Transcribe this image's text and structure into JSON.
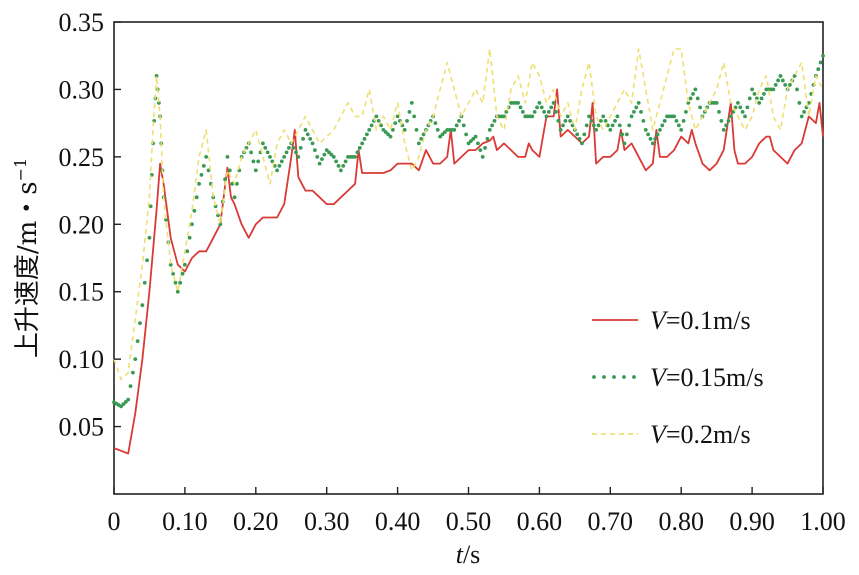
{
  "chart_data": {
    "type": "line",
    "xlabel_var": "t",
    "xlabel_unit": "/s",
    "ylabel_main": "上升速度/m・s",
    "ylabel_sup": "−1",
    "xlim": [
      0,
      1.0
    ],
    "ylim": [
      0,
      0.35
    ],
    "grid": false,
    "legend_position": "center-right",
    "x_ticks": [
      0,
      0.1,
      0.2,
      0.3,
      0.4,
      0.5,
      0.6,
      0.7,
      0.8,
      0.9,
      1.0
    ],
    "x_tick_labels": [
      "0",
      "0.10",
      "0.20",
      "0.30",
      "0.40",
      "0.50",
      "0.60",
      "0.70",
      "0.80",
      "0.90",
      "1.00"
    ],
    "y_ticks": [
      0.05,
      0.1,
      0.15,
      0.2,
      0.25,
      0.3,
      0.35
    ],
    "y_tick_labels": [
      "0.05",
      "0.10",
      "0.15",
      "0.20",
      "0.25",
      "0.30",
      "0.35"
    ],
    "series": [
      {
        "name_var": "V",
        "name_rest": "=0.1m/s",
        "color": "#d93a36",
        "style": "solid",
        "x": [
          0,
          0.01,
          0.02,
          0.03,
          0.04,
          0.05,
          0.06,
          0.065,
          0.07,
          0.08,
          0.09,
          0.1,
          0.11,
          0.12,
          0.13,
          0.14,
          0.15,
          0.16,
          0.165,
          0.17,
          0.18,
          0.19,
          0.2,
          0.21,
          0.22,
          0.23,
          0.24,
          0.25,
          0.255,
          0.26,
          0.27,
          0.28,
          0.29,
          0.3,
          0.31,
          0.32,
          0.33,
          0.34,
          0.345,
          0.35,
          0.36,
          0.37,
          0.38,
          0.39,
          0.4,
          0.41,
          0.42,
          0.43,
          0.44,
          0.45,
          0.46,
          0.47,
          0.475,
          0.48,
          0.49,
          0.5,
          0.51,
          0.52,
          0.53,
          0.535,
          0.54,
          0.55,
          0.56,
          0.57,
          0.58,
          0.585,
          0.59,
          0.6,
          0.61,
          0.62,
          0.625,
          0.63,
          0.64,
          0.65,
          0.66,
          0.67,
          0.675,
          0.68,
          0.69,
          0.7,
          0.71,
          0.715,
          0.72,
          0.73,
          0.74,
          0.75,
          0.76,
          0.765,
          0.77,
          0.78,
          0.79,
          0.8,
          0.81,
          0.815,
          0.82,
          0.83,
          0.84,
          0.85,
          0.86,
          0.87,
          0.875,
          0.88,
          0.89,
          0.9,
          0.91,
          0.92,
          0.925,
          0.93,
          0.94,
          0.95,
          0.96,
          0.97,
          0.98,
          0.99,
          0.995,
          1.0
        ],
        "y": [
          0.034,
          0.032,
          0.03,
          0.06,
          0.1,
          0.15,
          0.21,
          0.245,
          0.23,
          0.19,
          0.17,
          0.165,
          0.175,
          0.18,
          0.18,
          0.19,
          0.2,
          0.242,
          0.22,
          0.215,
          0.2,
          0.19,
          0.2,
          0.205,
          0.205,
          0.205,
          0.215,
          0.25,
          0.27,
          0.235,
          0.225,
          0.225,
          0.22,
          0.215,
          0.215,
          0.22,
          0.225,
          0.23,
          0.255,
          0.238,
          0.238,
          0.238,
          0.238,
          0.24,
          0.245,
          0.245,
          0.245,
          0.24,
          0.255,
          0.245,
          0.245,
          0.25,
          0.27,
          0.245,
          0.25,
          0.255,
          0.255,
          0.26,
          0.262,
          0.265,
          0.255,
          0.26,
          0.255,
          0.25,
          0.25,
          0.26,
          0.255,
          0.25,
          0.28,
          0.28,
          0.3,
          0.265,
          0.27,
          0.265,
          0.26,
          0.265,
          0.29,
          0.245,
          0.25,
          0.25,
          0.255,
          0.27,
          0.255,
          0.26,
          0.25,
          0.24,
          0.245,
          0.27,
          0.25,
          0.25,
          0.255,
          0.265,
          0.26,
          0.27,
          0.26,
          0.245,
          0.24,
          0.245,
          0.255,
          0.29,
          0.255,
          0.245,
          0.245,
          0.25,
          0.26,
          0.265,
          0.265,
          0.255,
          0.25,
          0.245,
          0.255,
          0.26,
          0.28,
          0.275,
          0.29,
          0.265
        ]
      },
      {
        "name_var": "V",
        "name_rest": "=0.15m/s",
        "color": "#3a9a54",
        "style": "dotted",
        "x": [
          0,
          0.01,
          0.02,
          0.03,
          0.04,
          0.05,
          0.055,
          0.06,
          0.065,
          0.07,
          0.08,
          0.09,
          0.1,
          0.11,
          0.12,
          0.13,
          0.14,
          0.15,
          0.16,
          0.17,
          0.18,
          0.19,
          0.2,
          0.21,
          0.22,
          0.23,
          0.24,
          0.25,
          0.26,
          0.27,
          0.28,
          0.29,
          0.3,
          0.31,
          0.32,
          0.33,
          0.34,
          0.35,
          0.36,
          0.37,
          0.38,
          0.39,
          0.4,
          0.41,
          0.42,
          0.43,
          0.44,
          0.45,
          0.46,
          0.47,
          0.48,
          0.49,
          0.5,
          0.51,
          0.52,
          0.53,
          0.54,
          0.55,
          0.56,
          0.57,
          0.58,
          0.59,
          0.6,
          0.61,
          0.62,
          0.63,
          0.64,
          0.65,
          0.66,
          0.67,
          0.68,
          0.69,
          0.7,
          0.71,
          0.72,
          0.73,
          0.74,
          0.75,
          0.76,
          0.77,
          0.78,
          0.79,
          0.8,
          0.81,
          0.82,
          0.83,
          0.84,
          0.85,
          0.86,
          0.87,
          0.88,
          0.89,
          0.9,
          0.91,
          0.92,
          0.93,
          0.94,
          0.95,
          0.96,
          0.97,
          0.98,
          0.99,
          1.0
        ],
        "y": [
          0.068,
          0.065,
          0.07,
          0.1,
          0.14,
          0.19,
          0.26,
          0.31,
          0.28,
          0.22,
          0.17,
          0.15,
          0.17,
          0.2,
          0.23,
          0.25,
          0.22,
          0.2,
          0.25,
          0.22,
          0.25,
          0.26,
          0.24,
          0.26,
          0.25,
          0.24,
          0.25,
          0.26,
          0.25,
          0.27,
          0.26,
          0.245,
          0.255,
          0.25,
          0.24,
          0.25,
          0.25,
          0.26,
          0.27,
          0.28,
          0.27,
          0.265,
          0.28,
          0.27,
          0.29,
          0.26,
          0.27,
          0.28,
          0.265,
          0.27,
          0.27,
          0.28,
          0.26,
          0.265,
          0.25,
          0.27,
          0.28,
          0.28,
          0.29,
          0.29,
          0.28,
          0.28,
          0.29,
          0.28,
          0.29,
          0.27,
          0.28,
          0.27,
          0.26,
          0.28,
          0.27,
          0.28,
          0.27,
          0.28,
          0.26,
          0.28,
          0.29,
          0.27,
          0.26,
          0.27,
          0.28,
          0.28,
          0.27,
          0.29,
          0.3,
          0.28,
          0.29,
          0.29,
          0.27,
          0.28,
          0.29,
          0.28,
          0.3,
          0.29,
          0.3,
          0.3,
          0.31,
          0.3,
          0.31,
          0.28,
          0.29,
          0.31,
          0.325
        ]
      },
      {
        "name_var": "V",
        "name_rest": "=0.2m/s",
        "color": "#eee070",
        "style": "dashed",
        "x": [
          0,
          0.01,
          0.02,
          0.03,
          0.04,
          0.05,
          0.055,
          0.06,
          0.065,
          0.07,
          0.08,
          0.09,
          0.1,
          0.11,
          0.12,
          0.13,
          0.14,
          0.15,
          0.16,
          0.17,
          0.18,
          0.19,
          0.2,
          0.21,
          0.22,
          0.23,
          0.24,
          0.25,
          0.26,
          0.27,
          0.28,
          0.29,
          0.3,
          0.31,
          0.32,
          0.33,
          0.34,
          0.35,
          0.36,
          0.37,
          0.38,
          0.39,
          0.4,
          0.41,
          0.42,
          0.43,
          0.44,
          0.45,
          0.46,
          0.47,
          0.48,
          0.49,
          0.5,
          0.51,
          0.52,
          0.53,
          0.54,
          0.55,
          0.56,
          0.57,
          0.58,
          0.59,
          0.6,
          0.61,
          0.62,
          0.63,
          0.64,
          0.65,
          0.66,
          0.67,
          0.68,
          0.69,
          0.7,
          0.71,
          0.72,
          0.73,
          0.74,
          0.75,
          0.76,
          0.77,
          0.78,
          0.79,
          0.8,
          0.81,
          0.82,
          0.83,
          0.84,
          0.85,
          0.86,
          0.87,
          0.88,
          0.89,
          0.9,
          0.91,
          0.92,
          0.93,
          0.94,
          0.95,
          0.96,
          0.97,
          0.98,
          0.99,
          1.0
        ],
        "y": [
          0.1,
          0.085,
          0.09,
          0.13,
          0.17,
          0.22,
          0.27,
          0.31,
          0.28,
          0.22,
          0.17,
          0.15,
          0.18,
          0.21,
          0.25,
          0.27,
          0.22,
          0.2,
          0.24,
          0.23,
          0.25,
          0.26,
          0.27,
          0.25,
          0.23,
          0.26,
          0.27,
          0.26,
          0.27,
          0.28,
          0.27,
          0.26,
          0.265,
          0.27,
          0.28,
          0.29,
          0.28,
          0.28,
          0.3,
          0.27,
          0.28,
          0.27,
          0.29,
          0.26,
          0.24,
          0.25,
          0.27,
          0.28,
          0.3,
          0.32,
          0.3,
          0.28,
          0.29,
          0.3,
          0.29,
          0.33,
          0.28,
          0.27,
          0.3,
          0.31,
          0.29,
          0.32,
          0.31,
          0.29,
          0.3,
          0.28,
          0.29,
          0.27,
          0.3,
          0.32,
          0.28,
          0.27,
          0.28,
          0.29,
          0.3,
          0.29,
          0.33,
          0.3,
          0.27,
          0.29,
          0.31,
          0.33,
          0.33,
          0.29,
          0.27,
          0.28,
          0.29,
          0.3,
          0.32,
          0.29,
          0.28,
          0.27,
          0.28,
          0.3,
          0.31,
          0.28,
          0.27,
          0.3,
          0.31,
          0.32,
          0.28,
          0.31,
          0.3
        ]
      }
    ]
  }
}
